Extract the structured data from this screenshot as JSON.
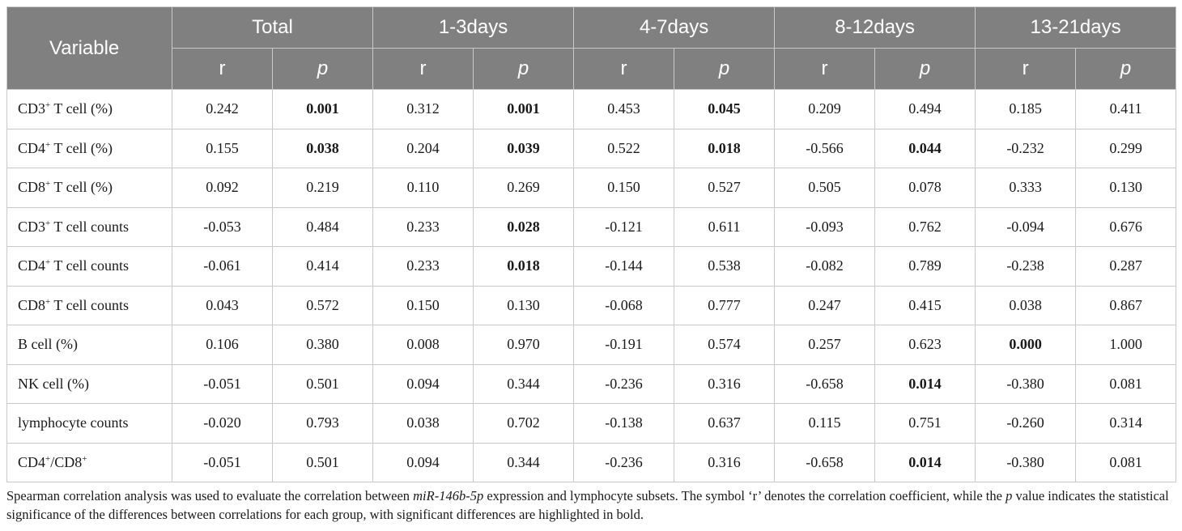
{
  "table": {
    "header_variable": "Variable",
    "groups": [
      "Total",
      "1-3days",
      "4-7days",
      "8-12days",
      "13-21days"
    ],
    "sub_r": "r",
    "sub_p": "p",
    "rows": [
      {
        "base": "CD3",
        "sup": "+",
        "rest": " T cell (%)",
        "cells": [
          {
            "v": "0.242",
            "b": false
          },
          {
            "v": "0.001",
            "b": true
          },
          {
            "v": "0.312",
            "b": false
          },
          {
            "v": "0.001",
            "b": true
          },
          {
            "v": "0.453",
            "b": false
          },
          {
            "v": "0.045",
            "b": true
          },
          {
            "v": "0.209",
            "b": false
          },
          {
            "v": "0.494",
            "b": false
          },
          {
            "v": "0.185",
            "b": false
          },
          {
            "v": "0.411",
            "b": false
          }
        ]
      },
      {
        "base": "CD4",
        "sup": "+",
        "rest": " T cell (%)",
        "cells": [
          {
            "v": "0.155",
            "b": false
          },
          {
            "v": "0.038",
            "b": true
          },
          {
            "v": "0.204",
            "b": false
          },
          {
            "v": "0.039",
            "b": true
          },
          {
            "v": "0.522",
            "b": false
          },
          {
            "v": "0.018",
            "b": true
          },
          {
            "v": "-0.566",
            "b": false
          },
          {
            "v": "0.044",
            "b": true
          },
          {
            "v": "-0.232",
            "b": false
          },
          {
            "v": "0.299",
            "b": false
          }
        ]
      },
      {
        "base": "CD8",
        "sup": "+",
        "rest": " T cell (%)",
        "cells": [
          {
            "v": "0.092",
            "b": false
          },
          {
            "v": "0.219",
            "b": false
          },
          {
            "v": "0.110",
            "b": false
          },
          {
            "v": "0.269",
            "b": false
          },
          {
            "v": "0.150",
            "b": false
          },
          {
            "v": "0.527",
            "b": false
          },
          {
            "v": "0.505",
            "b": false
          },
          {
            "v": "0.078",
            "b": false
          },
          {
            "v": "0.333",
            "b": false
          },
          {
            "v": "0.130",
            "b": false
          }
        ]
      },
      {
        "base": "CD3",
        "sup": "+",
        "rest": " T cell counts",
        "cells": [
          {
            "v": "-0.053",
            "b": false
          },
          {
            "v": "0.484",
            "b": false
          },
          {
            "v": "0.233",
            "b": false
          },
          {
            "v": "0.028",
            "b": true
          },
          {
            "v": "-0.121",
            "b": false
          },
          {
            "v": "0.611",
            "b": false
          },
          {
            "v": "-0.093",
            "b": false
          },
          {
            "v": "0.762",
            "b": false
          },
          {
            "v": "-0.094",
            "b": false
          },
          {
            "v": "0.676",
            "b": false
          }
        ]
      },
      {
        "base": "CD4",
        "sup": "+",
        "rest": " T cell counts",
        "cells": [
          {
            "v": "-0.061",
            "b": false
          },
          {
            "v": "0.414",
            "b": false
          },
          {
            "v": "0.233",
            "b": false
          },
          {
            "v": "0.018",
            "b": true
          },
          {
            "v": "-0.144",
            "b": false
          },
          {
            "v": "0.538",
            "b": false
          },
          {
            "v": "-0.082",
            "b": false
          },
          {
            "v": "0.789",
            "b": false
          },
          {
            "v": "-0.238",
            "b": false
          },
          {
            "v": "0.287",
            "b": false
          }
        ]
      },
      {
        "base": "CD8",
        "sup": "+",
        "rest": " T cell counts",
        "cells": [
          {
            "v": "0.043",
            "b": false
          },
          {
            "v": "0.572",
            "b": false
          },
          {
            "v": "0.150",
            "b": false
          },
          {
            "v": "0.130",
            "b": false
          },
          {
            "v": "-0.068",
            "b": false
          },
          {
            "v": "0.777",
            "b": false
          },
          {
            "v": "0.247",
            "b": false
          },
          {
            "v": "0.415",
            "b": false
          },
          {
            "v": "0.038",
            "b": false
          },
          {
            "v": "0.867",
            "b": false
          }
        ]
      },
      {
        "base": "B cell (%)",
        "sup": "",
        "rest": "",
        "cells": [
          {
            "v": "0.106",
            "b": false
          },
          {
            "v": "0.380",
            "b": false
          },
          {
            "v": "0.008",
            "b": false
          },
          {
            "v": "0.970",
            "b": false
          },
          {
            "v": "-0.191",
            "b": false
          },
          {
            "v": "0.574",
            "b": false
          },
          {
            "v": "0.257",
            "b": false
          },
          {
            "v": "0.623",
            "b": false
          },
          {
            "v": "0.000",
            "b": true
          },
          {
            "v": "1.000",
            "b": false
          }
        ]
      },
      {
        "base": "NK cell (%)",
        "sup": "",
        "rest": "",
        "cells": [
          {
            "v": "-0.051",
            "b": false
          },
          {
            "v": "0.501",
            "b": false
          },
          {
            "v": "0.094",
            "b": false
          },
          {
            "v": "0.344",
            "b": false
          },
          {
            "v": "-0.236",
            "b": false
          },
          {
            "v": "0.316",
            "b": false
          },
          {
            "v": "-0.658",
            "b": false
          },
          {
            "v": "0.014",
            "b": true
          },
          {
            "v": "-0.380",
            "b": false
          },
          {
            "v": "0.081",
            "b": false
          }
        ]
      },
      {
        "base": "lymphocyte counts",
        "sup": "",
        "rest": "",
        "cells": [
          {
            "v": "-0.020",
            "b": false
          },
          {
            "v": "0.793",
            "b": false
          },
          {
            "v": "0.038",
            "b": false
          },
          {
            "v": "0.702",
            "b": false
          },
          {
            "v": "-0.138",
            "b": false
          },
          {
            "v": "0.637",
            "b": false
          },
          {
            "v": "0.115",
            "b": false
          },
          {
            "v": "0.751",
            "b": false
          },
          {
            "v": "-0.260",
            "b": false
          },
          {
            "v": "0.314",
            "b": false
          }
        ]
      },
      {
        "base": "CD4",
        "sup": "+",
        "rest": "/CD8",
        "sup2": "+",
        "cells": [
          {
            "v": "-0.051",
            "b": false
          },
          {
            "v": "0.501",
            "b": false
          },
          {
            "v": "0.094",
            "b": false
          },
          {
            "v": "0.344",
            "b": false
          },
          {
            "v": "-0.236",
            "b": false
          },
          {
            "v": "0.316",
            "b": false
          },
          {
            "v": "-0.658",
            "b": false
          },
          {
            "v": "0.014",
            "b": true
          },
          {
            "v": "-0.380",
            "b": false
          },
          {
            "v": "0.081",
            "b": false
          }
        ]
      }
    ]
  },
  "footnote": {
    "part1": "Spearman correlation analysis was used to evaluate the correlation between ",
    "gene": "miR-146b-5p",
    "part2": " expression and lymphocyte subsets. The symbol ‘r’ denotes the correlation coefficient, while the ",
    "p": "p",
    "part3": " value indicates the statistical significance of the differences between correlations for each group, with significant differences are highlighted in bold."
  },
  "colors": {
    "header_bg": "#808080",
    "header_text": "#ffffff",
    "grid": "#c8c8c8"
  }
}
